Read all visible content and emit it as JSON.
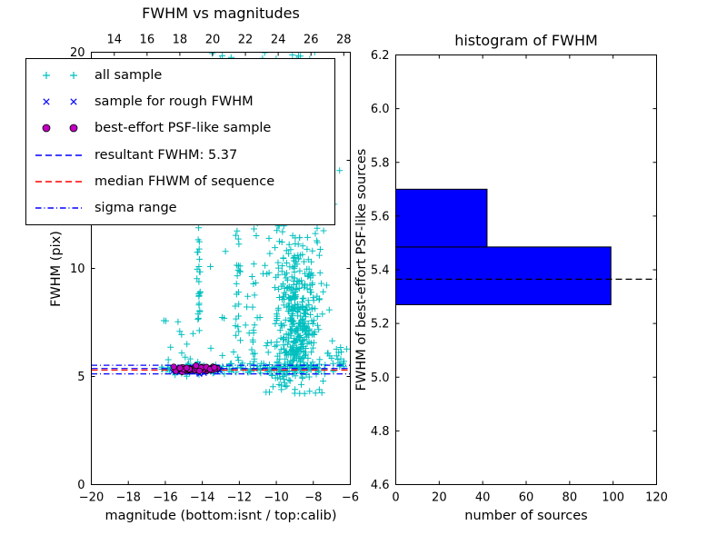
{
  "chart_data": [
    {
      "type": "scatter",
      "title": "FWHM vs magnitudes",
      "xlabel": "magnitude (bottom:isnt / top:calib)",
      "ylabel": "FWHM (pix)",
      "xlim": [
        -20,
        -6
      ],
      "ylim": [
        0,
        20
      ],
      "xticks": [
        -20,
        -18,
        -16,
        -14,
        -12,
        -10,
        -8,
        -6
      ],
      "xtick_labels": [
        "−20",
        "−18",
        "−16",
        "−14",
        "−12",
        "−10",
        "−8",
        "−6"
      ],
      "top_axis": {
        "xlim": [
          12.6,
          28.4
        ],
        "ticks": [
          14,
          16,
          18,
          20,
          22,
          24,
          26,
          28
        ],
        "labels": [
          "14",
          "16",
          "18",
          "20",
          "22",
          "24",
          "26",
          "28"
        ]
      },
      "yticks": [
        0,
        5,
        10,
        15,
        20
      ],
      "ytick_labels": [
        "0",
        "5",
        "10",
        "15",
        "20"
      ],
      "hlines": [
        {
          "name": "resultant-fwhm",
          "value": 5.37,
          "style": "dashed",
          "color": "#0000ff"
        },
        {
          "name": "median-fwhm",
          "value": 5.3,
          "style": "dashed",
          "color": "#ff0000"
        },
        {
          "name": "sigma-upper",
          "value": 5.52,
          "style": "dashdot",
          "color": "#0000ff"
        },
        {
          "name": "sigma-lower",
          "value": 5.12,
          "style": "dashdot",
          "color": "#0000ff"
        }
      ],
      "series": [
        {
          "name": "all sample",
          "marker": "plus",
          "color": "#00bfbf",
          "clusters": [
            {
              "n": 320,
              "x": {
                "dist": "normal",
                "mu": -8.8,
                "sigma": 0.55
              },
              "y": {
                "dist": "normal",
                "mu": 7.3,
                "sigma": 1.7,
                "clip": [
                  4.9,
                  20.5
                ]
              }
            },
            {
              "n": 260,
              "x": {
                "dist": "normal",
                "mu": -8.9,
                "sigma": 0.9
              },
              "y": {
                "dist": "uniform",
                "min": 8,
                "max": 20.4
              }
            },
            {
              "n": 130,
              "x": {
                "dist": "uniform",
                "min": -16.2,
                "max": -7.3
              },
              "y": {
                "dist": "normal",
                "mu": 5.35,
                "sigma": 0.13
              }
            },
            {
              "n": 22,
              "x": {
                "dist": "uniform",
                "min": -7.4,
                "max": -6.2
              },
              "y": {
                "dist": "normal",
                "mu": 5.9,
                "sigma": 0.4
              }
            },
            {
              "n": 36,
              "x": {
                "dist": "normal",
                "mu": -14.2,
                "sigma": 0.05
              },
              "y": {
                "dist": "uniform",
                "min": 5.5,
                "max": 13.6
              }
            },
            {
              "n": 20,
              "x": {
                "dist": "normal",
                "mu": -12.05,
                "sigma": 0.05
              },
              "y": {
                "dist": "uniform",
                "min": 5.3,
                "max": 12.2
              }
            },
            {
              "n": 18,
              "x": {
                "dist": "normal",
                "mu": -11.2,
                "sigma": 0.05
              },
              "y": {
                "dist": "uniform",
                "min": 5.3,
                "max": 12.6
              }
            },
            {
              "n": 55,
              "x": {
                "dist": "uniform",
                "min": -13.6,
                "max": -10.3
              },
              "y": {
                "dist": "uniform",
                "min": 5.5,
                "max": 19.8
              }
            },
            {
              "n": 26,
              "x": {
                "dist": "uniform",
                "min": -10.6,
                "max": -7.4
              },
              "y": {
                "dist": "uniform",
                "min": 4.2,
                "max": 5.0
              }
            },
            {
              "n": 7,
              "x": {
                "dist": "uniform",
                "min": -13.7,
                "max": -12.2
              },
              "y": {
                "dist": "uniform",
                "min": 18.6,
                "max": 20.1
              }
            },
            {
              "n": 12,
              "x": {
                "dist": "uniform",
                "min": -16.1,
                "max": -13.8
              },
              "y": {
                "dist": "uniform",
                "min": 5.6,
                "max": 7.6
              }
            },
            {
              "n": 30,
              "x": {
                "dist": "normal",
                "mu": -9.7,
                "sigma": 0.5
              },
              "y": {
                "dist": "uniform",
                "min": 5.0,
                "max": 7.0
              }
            }
          ]
        },
        {
          "name": "sample for rough FWHM",
          "marker": "x",
          "color": "#0000ff",
          "clusters": [
            {
              "n": 48,
              "x": {
                "dist": "uniform",
                "min": -15.65,
                "max": -13.05
              },
              "y": {
                "dist": "normal",
                "mu": 5.32,
                "sigma": 0.09
              }
            }
          ]
        },
        {
          "name": "best-effort PSF-like sample",
          "marker": "circle",
          "color": "#bf00bf",
          "edge_color": "#000000",
          "clusters": [
            {
              "n": 42,
              "x": {
                "dist": "uniform",
                "min": -15.55,
                "max": -13.15
              },
              "y": {
                "dist": "normal",
                "mu": 5.33,
                "sigma": 0.075
              }
            }
          ]
        }
      ],
      "legend": {
        "entries": [
          {
            "label": "all sample",
            "type": "plus",
            "color": "#00bfbf"
          },
          {
            "label": "sample for rough FWHM",
            "type": "x",
            "color": "#0000ff"
          },
          {
            "label": "best-effort PSF-like sample",
            "type": "circle",
            "color": "#bf00bf"
          },
          {
            "label": "resultant FWHM: 5.37",
            "type": "dashed",
            "color": "#0000ff"
          },
          {
            "label": "median FHWM of sequence",
            "type": "dashed",
            "color": "#ff0000"
          },
          {
            "label": "sigma range",
            "type": "dashdot",
            "color": "#0000ff"
          }
        ]
      }
    },
    {
      "type": "bar",
      "orientation": "horizontal",
      "title": "histogram of FWHM",
      "xlabel": "number of sources",
      "ylabel": "FWHM of best-effort PSF-like sources",
      "xlim": [
        0,
        120
      ],
      "ylim": [
        4.6,
        6.2
      ],
      "xticks": [
        0,
        20,
        40,
        60,
        80,
        100,
        120
      ],
      "xtick_labels": [
        "0",
        "20",
        "40",
        "60",
        "80",
        "100",
        "120"
      ],
      "yticks": [
        4.6,
        4.8,
        5.0,
        5.2,
        5.4,
        5.6,
        5.8,
        6.0,
        6.2
      ],
      "ytick_labels": [
        "4.6",
        "4.8",
        "5.0",
        "5.2",
        "5.4",
        "5.6",
        "5.8",
        "6.0",
        "6.2"
      ],
      "bar_color": "#0000ff",
      "bins": [
        {
          "y_from": 5.27,
          "y_to": 5.485,
          "count": 99
        },
        {
          "y_from": 5.485,
          "y_to": 5.7,
          "count": 42
        }
      ],
      "hline": {
        "name": "resultant-fwhm",
        "value": 5.365,
        "style": "dashed",
        "color": "#000000"
      }
    }
  ]
}
